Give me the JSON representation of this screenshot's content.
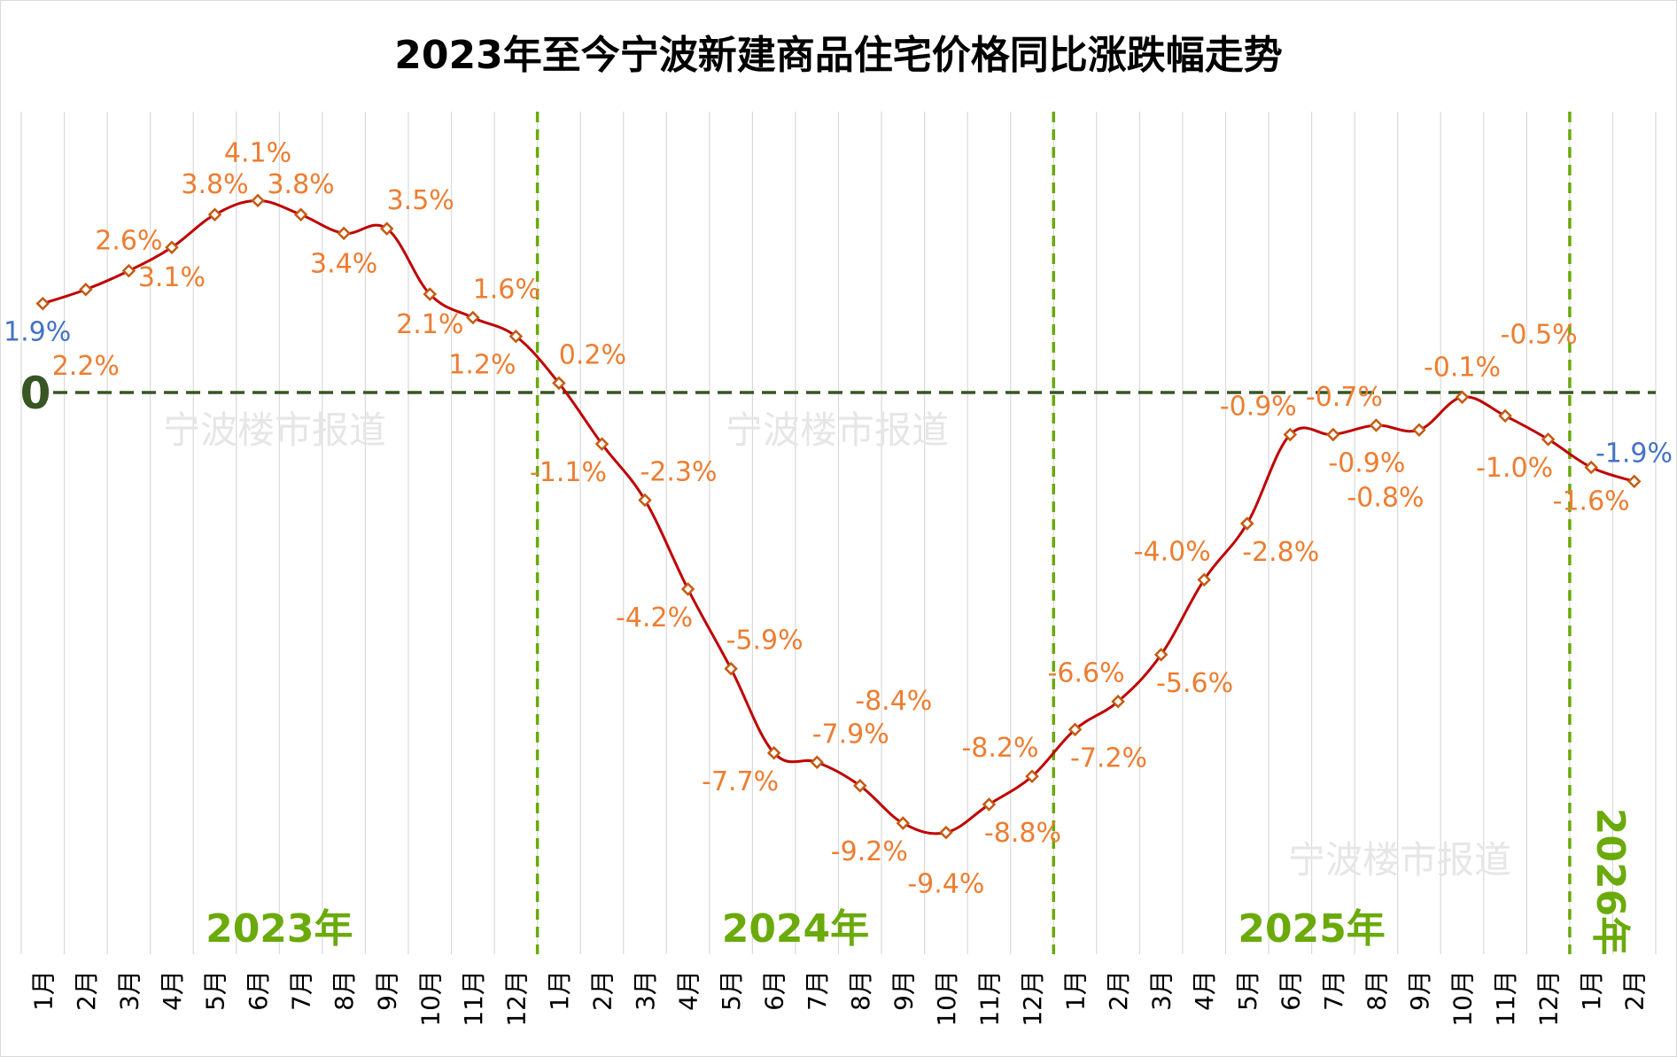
{
  "chart_data": {
    "type": "line",
    "title": "2023年至今宁波新建商品住宅价格同比涨跌幅走势",
    "xlabel": "",
    "ylabel": "",
    "ylim": [
      -12,
      6
    ],
    "grid": "vertical",
    "zero_label": "0",
    "watermark": "宁波楼市报道",
    "years": [
      "2023年",
      "2024年",
      "2025年",
      "2026年"
    ],
    "categories": [
      "1月",
      "2月",
      "3月",
      "4月",
      "5月",
      "6月",
      "7月",
      "8月",
      "9月",
      "10月",
      "11月",
      "12月",
      "1月",
      "2月",
      "3月",
      "4月",
      "5月",
      "6月",
      "7月",
      "8月",
      "9月",
      "10月",
      "11月",
      "12月",
      "1月",
      "2月",
      "3月",
      "4月",
      "5月",
      "6月",
      "7月",
      "8月",
      "9月",
      "10月",
      "11月",
      "12月",
      "1月",
      "2月"
    ],
    "series": [
      {
        "name": "同比涨跌幅",
        "values": [
          1.9,
          2.2,
          2.6,
          3.1,
          3.8,
          4.1,
          3.8,
          3.4,
          3.5,
          2.1,
          1.6,
          1.2,
          0.2,
          -1.1,
          -2.3,
          -4.2,
          -5.9,
          -7.7,
          -7.9,
          -8.4,
          -9.2,
          -9.4,
          -8.8,
          -8.2,
          -7.2,
          -6.6,
          -5.6,
          -4.0,
          -2.8,
          -0.9,
          -0.9,
          -0.7,
          -0.8,
          -0.1,
          -0.5,
          -1.0,
          -1.6,
          -1.9
        ],
        "labels": [
          "1.9%",
          "2.2%",
          "2.6%",
          "3.1%",
          "3.8%",
          "4.1%",
          "3.8%",
          "3.4%",
          "3.5%",
          "2.1%",
          "1.6%",
          "1.2%",
          "0.2%",
          "-1.1%",
          "-2.3%",
          "-4.2%",
          "-5.9%",
          "-7.7%",
          "-7.9%",
          "-8.4%",
          "-9.2%",
          "-9.4%",
          "-8.8%",
          "-8.2%",
          "-7.2%",
          "-6.6%",
          "-5.6%",
          "-4.0%",
          "-2.8%",
          "-0.9%",
          "-0.9%",
          "-0.7%",
          "-0.8%",
          "-0.1%",
          "-0.5%",
          "-1.0%",
          "-1.6%",
          "-1.9%"
        ],
        "label_placement": [
          "below-left",
          "below",
          "above",
          "below",
          "above",
          "above",
          "above",
          "below",
          "above-right",
          "below",
          "above-right",
          "below-left",
          "above-right",
          "below-left",
          "above-right",
          "below-left",
          "above-right",
          "below-left",
          "above-right",
          "above-right",
          "below-left",
          "below",
          "below-right",
          "above-left",
          "below-right",
          "above-left",
          "below-right",
          "above-left",
          "below-right",
          "above-left",
          "below-right",
          "above-left",
          "below-left",
          "above",
          "above-right",
          "below-left",
          "below",
          "above-right"
        ],
        "line_color": "#C00000",
        "marker_color": "#C55A11"
      }
    ],
    "colors": {
      "label": "#ED7D31",
      "label_highlight": "#4472C4",
      "year": "#6AAA0A",
      "zero_line": "#375623"
    }
  }
}
